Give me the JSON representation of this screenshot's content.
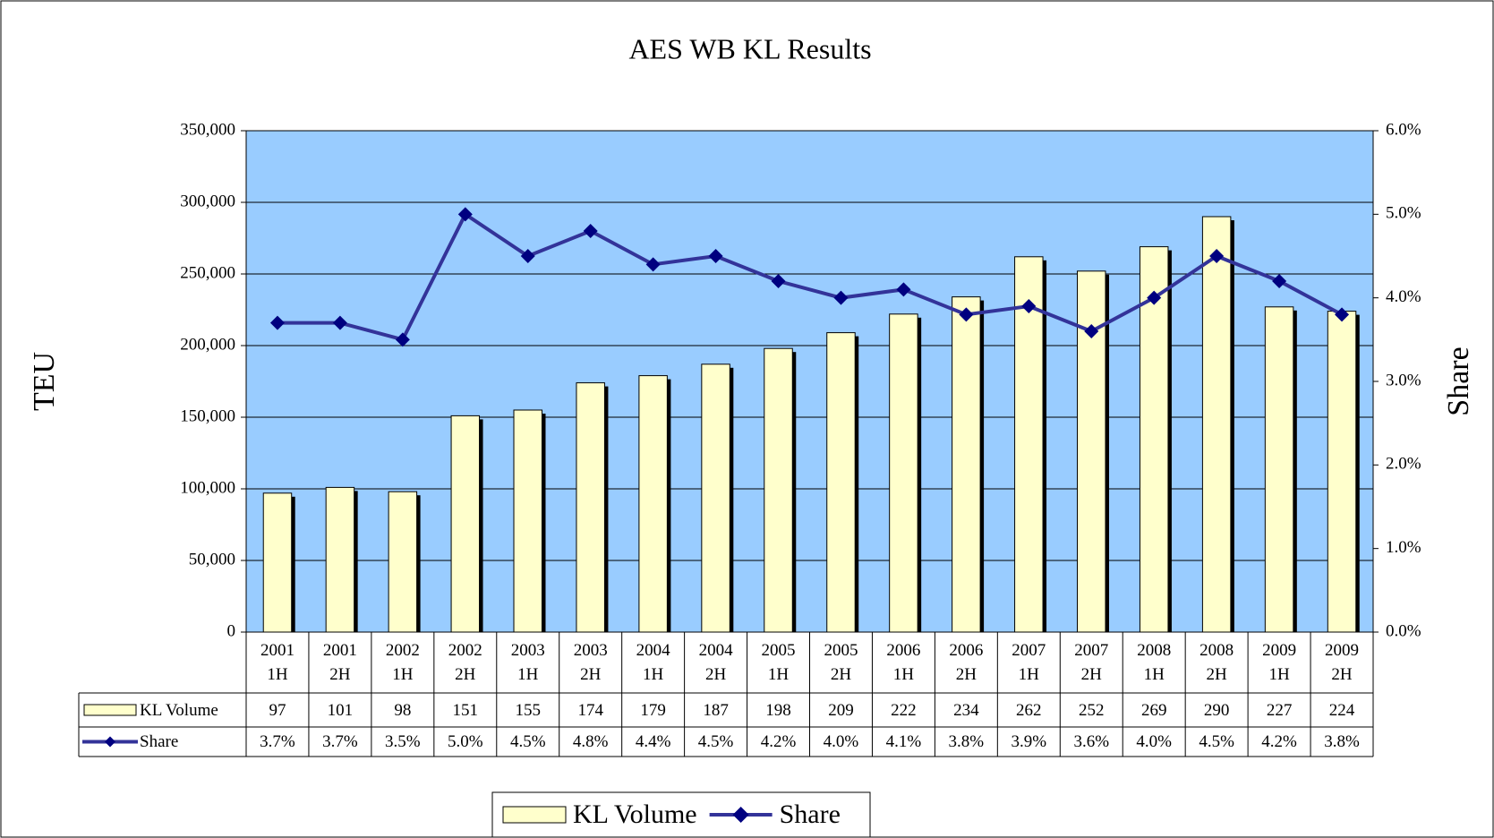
{
  "chart_data": {
    "type": "bar",
    "title": "AES WB KL Results",
    "ylabel": "TEU",
    "y2label": "Share",
    "categories": [
      "2001 1H",
      "2001 2H",
      "2002 1H",
      "2002 2H",
      "2003 1H",
      "2003 2H",
      "2004 1H",
      "2004 2H",
      "2005 1H",
      "2005 2H",
      "2006 1H",
      "2006 2H",
      "2007 1H",
      "2007 2H",
      "2008 1H",
      "2008 2H",
      "2009 1H",
      "2009 2H"
    ],
    "series": [
      {
        "name": "KL Volume",
        "type": "bar",
        "color": "#ffffcc",
        "values": [
          97000,
          101000,
          98000,
          151000,
          155000,
          174000,
          179000,
          187000,
          198000,
          209000,
          222000,
          234000,
          262000,
          252000,
          269000,
          290000,
          227000,
          224000
        ],
        "value_labels": [
          "97",
          "101",
          "98",
          "151",
          "155",
          "174",
          "179",
          "187",
          "198",
          "209",
          "222",
          "234",
          "262",
          "252",
          "269",
          "290",
          "227",
          "224"
        ]
      },
      {
        "name": "Share",
        "type": "line",
        "axis": "y2",
        "color": "#333399",
        "values": [
          3.7,
          3.7,
          3.5,
          5.0,
          4.5,
          4.8,
          4.4,
          4.5,
          4.2,
          4.0,
          4.1,
          3.8,
          3.9,
          3.6,
          4.0,
          4.5,
          4.2,
          3.8
        ],
        "value_labels": [
          "3.7%",
          "3.7%",
          "3.5%",
          "5.0%",
          "4.5%",
          "4.8%",
          "4.4%",
          "4.5%",
          "4.2%",
          "4.0%",
          "4.1%",
          "3.8%",
          "3.9%",
          "3.6%",
          "4.0%",
          "4.5%",
          "4.2%",
          "3.8%"
        ]
      }
    ],
    "ylim": [
      0,
      350000
    ],
    "yticks": [
      0,
      {
        "value": 50000,
        "label": "50,000"
      },
      {
        "value": 100000,
        "label": "100,000"
      },
      {
        "value": 150000,
        "label": "150,000"
      },
      {
        "value": 200000,
        "label": "200,000"
      },
      {
        "value": 250000,
        "label": "250,000"
      },
      {
        "value": 300000,
        "label": "300,000"
      },
      {
        "value": 350000,
        "label": "350,000"
      }
    ],
    "y2lim": [
      0,
      6
    ],
    "y2ticks": [
      {
        "value": 0,
        "label": "0.0%"
      },
      {
        "value": 1,
        "label": "1.0%"
      },
      {
        "value": 2,
        "label": "2.0%"
      },
      {
        "value": 3,
        "label": "3.0%"
      },
      {
        "value": 4,
        "label": "4.0%"
      },
      {
        "value": 5,
        "label": "5.0%"
      },
      {
        "value": 6,
        "label": "6.0%"
      }
    ],
    "grid": true,
    "plot_background": "#99ccff",
    "legend": "bottom"
  }
}
